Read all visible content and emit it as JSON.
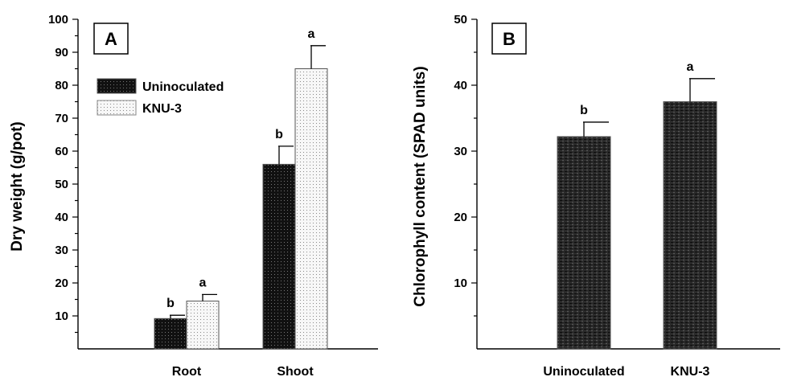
{
  "colors": {
    "uninoculated_fill": "#1a1a1a",
    "knu3_fill": "#f2f2f2",
    "panelB_fill": "#222222"
  },
  "chart_data": [
    {
      "type": "bar",
      "panel": "A",
      "ylabel": "Dry weight (g/pot)",
      "xlabel": "",
      "categories": [
        "Root",
        "Shoot"
      ],
      "ylim": [
        0,
        100
      ],
      "yticks": [
        10,
        20,
        30,
        40,
        50,
        60,
        70,
        80,
        90,
        100
      ],
      "legend": {
        "placement": "top-left"
      },
      "series": [
        {
          "name": "Uninoculated",
          "values": [
            9.2,
            56
          ],
          "errors": [
            1.0,
            5.5
          ],
          "letters": [
            "b",
            "b"
          ]
        },
        {
          "name": "KNU-3",
          "values": [
            14.5,
            85
          ],
          "errors": [
            2.0,
            7.0
          ],
          "letters": [
            "a",
            "a"
          ]
        }
      ]
    },
    {
      "type": "bar",
      "panel": "B",
      "ylabel": "Chlorophyll content (SPAD units)",
      "xlabel": "",
      "categories": [
        "Uninoculated",
        "KNU-3"
      ],
      "ylim": [
        0,
        50
      ],
      "yticks": [
        10,
        20,
        30,
        40,
        50
      ],
      "values": [
        32.2,
        37.5
      ],
      "errors": [
        2.2,
        3.5
      ],
      "letters": [
        "b",
        "a"
      ]
    }
  ]
}
